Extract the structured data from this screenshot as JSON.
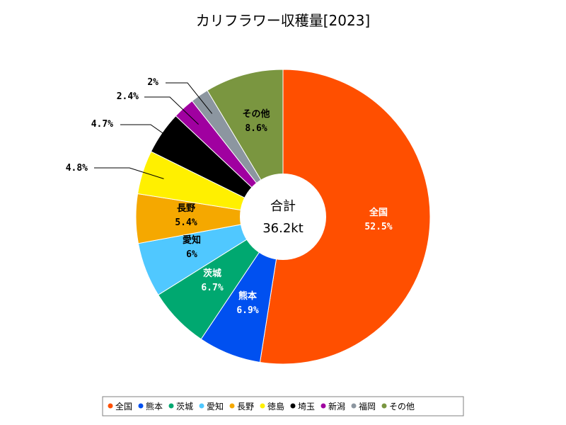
{
  "chart_data": {
    "type": "pie",
    "title": "カリフラワー収穫量[2023]",
    "center": {
      "line1": "合計",
      "line2": "36.2kt"
    },
    "legend_position": "bottom",
    "slices": [
      {
        "name": "全国",
        "value": 52.5,
        "label": "52.5%",
        "color": "#FF4F00",
        "label_color": "#FFFFFF",
        "outside": false
      },
      {
        "name": "熊本",
        "value": 6.9,
        "label": "6.9%",
        "color": "#0050F0",
        "label_color": "#FFFFFF",
        "outside": false
      },
      {
        "name": "茨城",
        "value": 6.7,
        "label": "6.7%",
        "color": "#00A870",
        "label_color": "#FFFFFF",
        "outside": false
      },
      {
        "name": "愛知",
        "value": 6.0,
        "label": "6%",
        "color": "#50C8FF",
        "label_color": "#000000",
        "outside": false
      },
      {
        "name": "長野",
        "value": 5.4,
        "label": "5.4%",
        "color": "#F5A800",
        "label_color": "#000000",
        "outside": false
      },
      {
        "name": "徳島",
        "value": 4.8,
        "label": "4.8%",
        "color": "#FFF000",
        "label_color": "#000000",
        "outside": true
      },
      {
        "name": "埼玉",
        "value": 4.7,
        "label": "4.7%",
        "color": "#000000",
        "label_color": "#000000",
        "outside": true
      },
      {
        "name": "新潟",
        "value": 2.4,
        "label": "2.4%",
        "color": "#A000A0",
        "label_color": "#000000",
        "outside": true
      },
      {
        "name": "福岡",
        "value": 2.0,
        "label": "2%",
        "color": "#8C96A0",
        "label_color": "#000000",
        "outside": true
      },
      {
        "name": "その他",
        "value": 8.6,
        "label": "8.6%",
        "color": "#7A9640",
        "label_color": "#000000",
        "outside": false
      }
    ]
  }
}
